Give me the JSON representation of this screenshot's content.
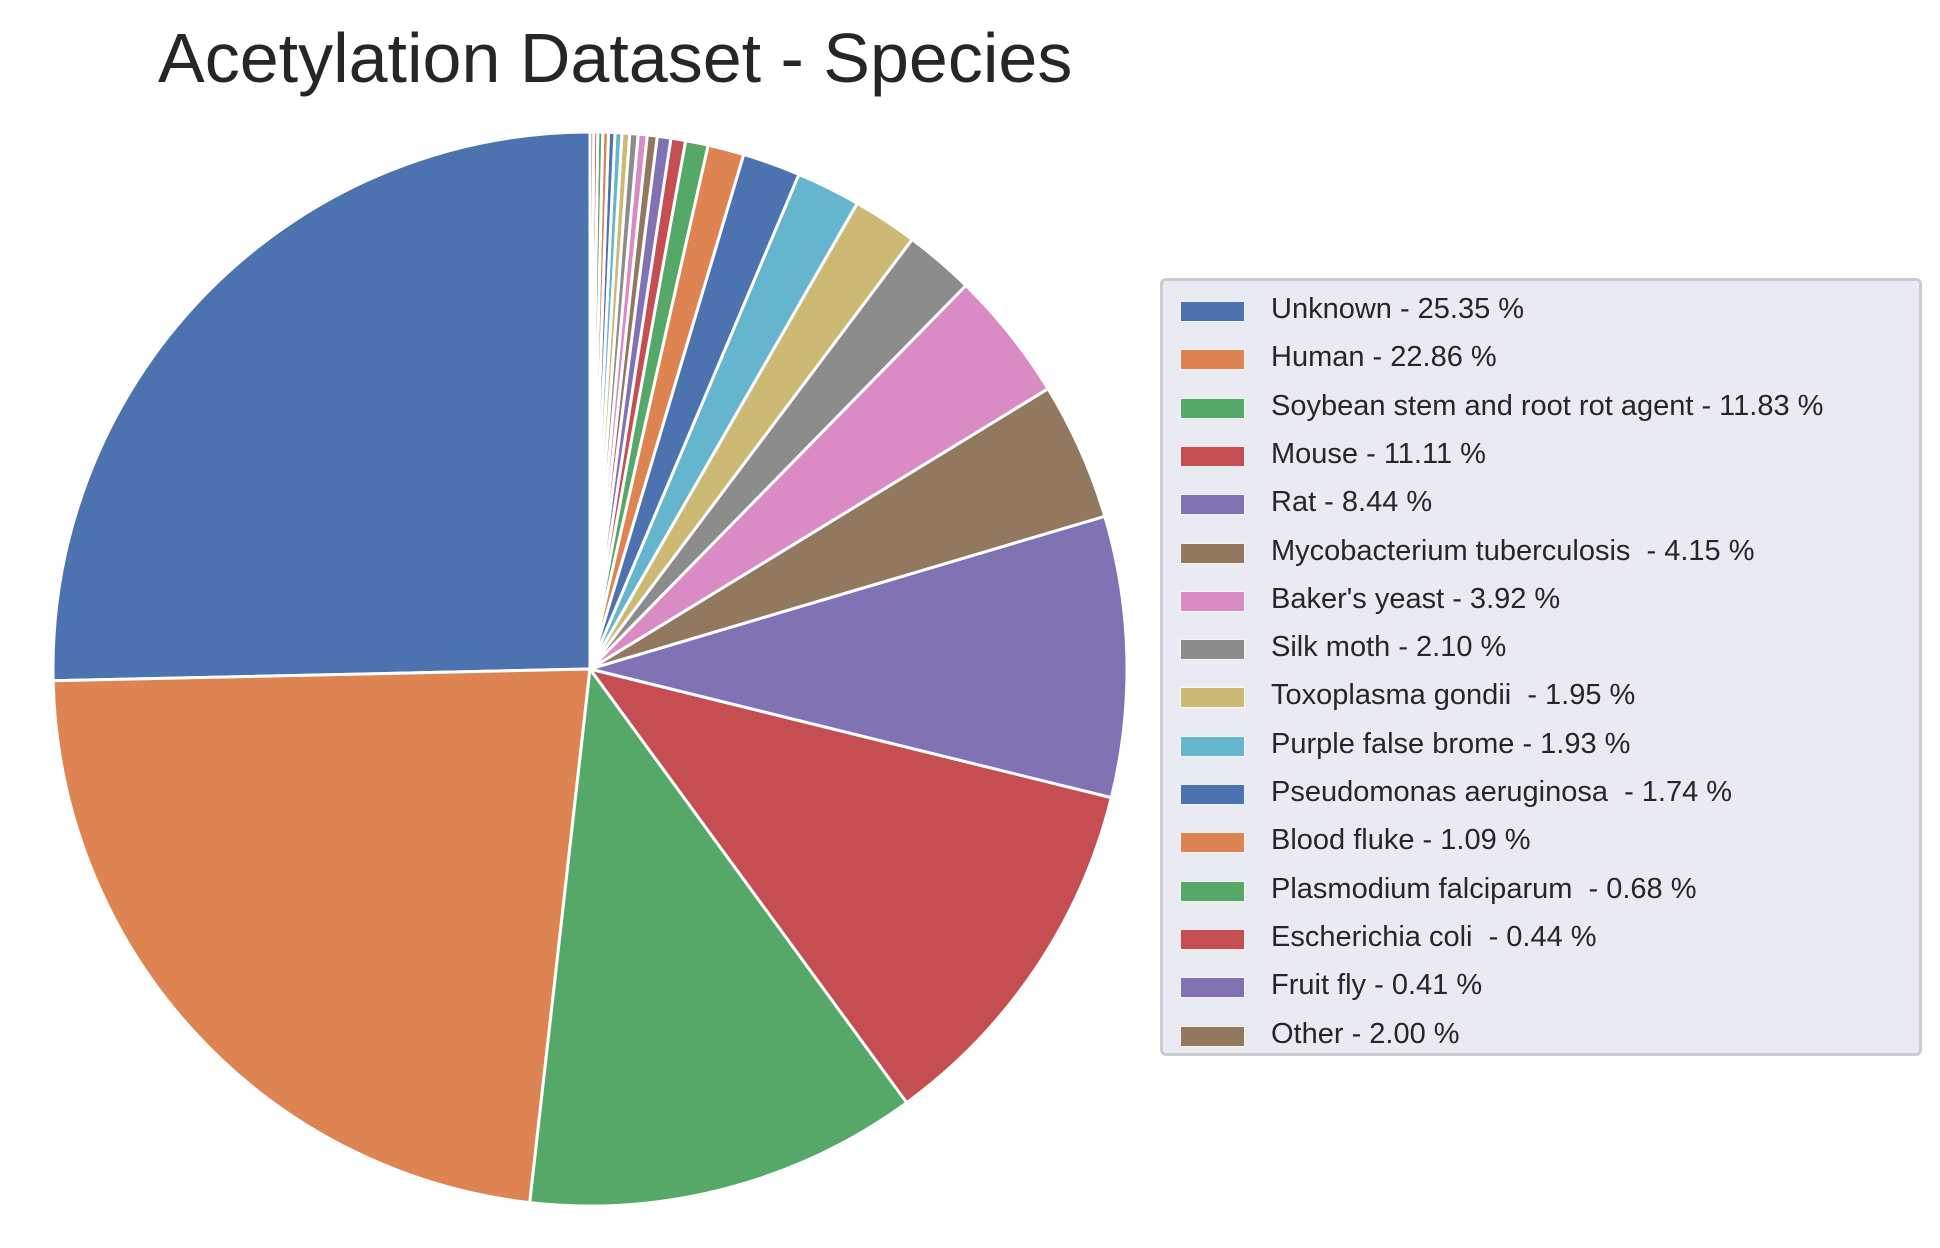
{
  "chart_data": {
    "type": "pie",
    "title": "Acetylation Dataset - Species",
    "start_angle_deg": 90,
    "direction": "counterclockwise",
    "edge_color": "#ffffff",
    "legend_placement": "right",
    "slices": [
      {
        "label": "Unknown - 25.35 %",
        "value": 25.35,
        "color": "#4c72b0"
      },
      {
        "label": "Human - 22.86 %",
        "value": 22.86,
        "color": "#dd8452"
      },
      {
        "label": "Soybean stem and root rot agent - 11.83 %",
        "value": 11.83,
        "color": "#55a868"
      },
      {
        "label": "Mouse - 11.11 %",
        "value": 11.11,
        "color": "#c44e52"
      },
      {
        "label": "Rat - 8.44 %",
        "value": 8.44,
        "color": "#8172b3"
      },
      {
        "label": "Mycobacterium tuberculosis  - 4.15 %",
        "value": 4.15,
        "color": "#937860"
      },
      {
        "label": "Baker's yeast - 3.92 %",
        "value": 3.92,
        "color": "#da8bc3"
      },
      {
        "label": "Silk moth - 2.10 %",
        "value": 2.1,
        "color": "#8c8c8c"
      },
      {
        "label": "Toxoplasma gondii  - 1.95 %",
        "value": 1.95,
        "color": "#ccb974"
      },
      {
        "label": "Purple false brome - 1.93 %",
        "value": 1.93,
        "color": "#64b5cd"
      },
      {
        "label": "Pseudomonas aeruginosa  - 1.74 %",
        "value": 1.74,
        "color": "#4c72b0"
      },
      {
        "label": "Blood fluke - 1.09 %",
        "value": 1.09,
        "color": "#dd8452"
      },
      {
        "label": "Plasmodium falciparum  - 0.68 %",
        "value": 0.68,
        "color": "#55a868"
      },
      {
        "label": "Escherichia coli  - 0.44 %",
        "value": 0.44,
        "color": "#c44e52"
      },
      {
        "label": "Fruit fly - 0.41 %",
        "value": 0.41,
        "color": "#8172b3"
      },
      {
        "label": "Other - 2.00 %",
        "value": 2.0,
        "color": "#937860"
      }
    ],
    "other_breakdown": [
      {
        "value": 0.3,
        "color": "#937860"
      },
      {
        "value": 0.27,
        "color": "#da8bc3"
      },
      {
        "value": 0.25,
        "color": "#8c8c8c"
      },
      {
        "value": 0.23,
        "color": "#ccb974"
      },
      {
        "value": 0.21,
        "color": "#64b5cd"
      },
      {
        "value": 0.19,
        "color": "#4c72b0"
      },
      {
        "value": 0.17,
        "color": "#dd8452"
      },
      {
        "value": 0.15,
        "color": "#55a868"
      },
      {
        "value": 0.12,
        "color": "#c44e52"
      },
      {
        "value": 0.11,
        "color": "#8172b3"
      }
    ]
  }
}
